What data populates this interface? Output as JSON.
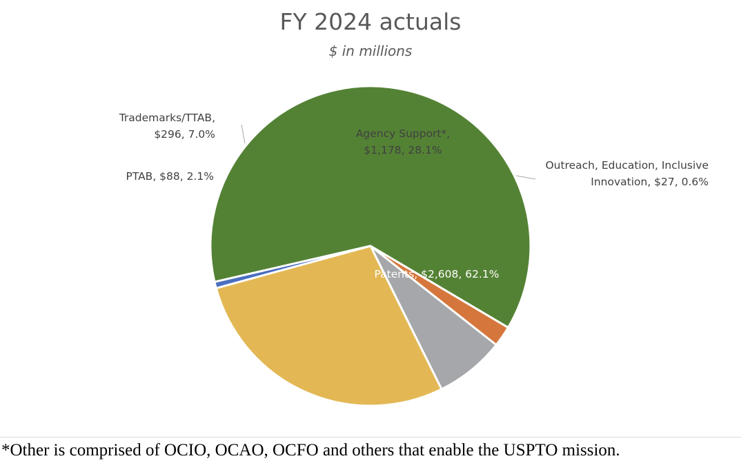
{
  "chart_data": {
    "type": "pie",
    "title": "FY 2024 actuals",
    "subtitle": "$ in millions",
    "slices": [
      {
        "name": "Patents",
        "label_lines": [
          "Patents, $2,608, 62.1%"
        ],
        "value": 2608,
        "percent": 62.1,
        "color": "#548235",
        "label_color": "#ffffff"
      },
      {
        "name": "PTAB",
        "label_lines": [
          "PTAB, $88, 2.1%"
        ],
        "value": 88,
        "percent": 2.1,
        "color": "#d5773c",
        "label_color": "#404040"
      },
      {
        "name": "Trademarks/TTAB",
        "label_lines": [
          "Trademarks/TTAB,",
          "$296, 7.0%"
        ],
        "value": 296,
        "percent": 7.0,
        "color": "#a5a7aa",
        "label_color": "#404040"
      },
      {
        "name": "Agency Support*",
        "label_lines": [
          "Agency Support*,",
          "$1,178, 28.1%"
        ],
        "value": 1178,
        "percent": 28.1,
        "color": "#e3b854",
        "label_color": "#404040"
      },
      {
        "name": "Outreach, Education, Inclusive Innovation",
        "label_lines": [
          "Outreach, Education, Inclusive",
          "Innovation, $27, 0.6%"
        ],
        "value": 27,
        "percent": 0.6,
        "color": "#4a6dbf",
        "label_color": "#404040"
      }
    ],
    "footnote": "*Other is comprised of OCIO, OCAO, OCFO and others that enable the USPTO mission."
  }
}
